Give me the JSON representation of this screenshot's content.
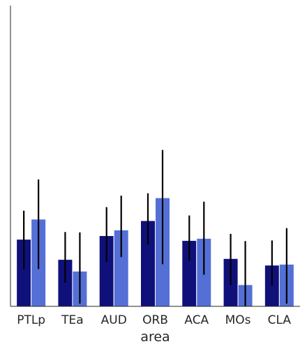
{
  "chart_data": {
    "type": "bar",
    "xlabel": "area",
    "ylabel": "",
    "title": "",
    "categories": [
      "PTLp",
      "TEa",
      "AUD",
      "ORB",
      "ACA",
      "MOs",
      "CLA"
    ],
    "ylim": [
      0,
      1.0
    ],
    "grid": false,
    "legend": "none",
    "series": [
      {
        "color": "#10107a",
        "values": [
          0.223,
          0.156,
          0.235,
          0.285,
          0.219,
          0.159,
          0.137
        ],
        "error_low": [
          0.124,
          0.078,
          0.148,
          0.205,
          0.152,
          0.071,
          0.069
        ],
        "error_high": [
          0.318,
          0.247,
          0.33,
          0.376,
          0.302,
          0.241,
          0.219
        ]
      },
      {
        "color": "#5470d6",
        "values": [
          0.29,
          0.117,
          0.254,
          0.361,
          0.226,
          0.072,
          0.14
        ],
        "error_low": [
          0.124,
          0.009,
          0.164,
          0.14,
          0.105,
          0.0,
          0.009
        ],
        "error_high": [
          0.422,
          0.246,
          0.368,
          0.52,
          0.348,
          0.217,
          0.26
        ]
      }
    ]
  }
}
